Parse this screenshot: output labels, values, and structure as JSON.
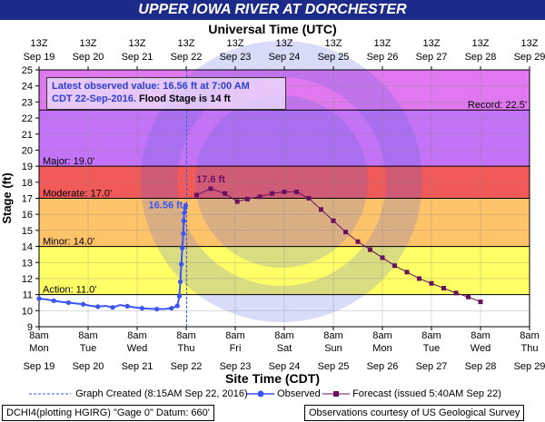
{
  "header": {
    "title": "UPPER IOWA RIVER AT DORCHESTER",
    "top_axis_title": "Universal Time (UTC)",
    "bottom_axis_title": "Site Time (CDT)",
    "y_axis_title": "Stage (ft)"
  },
  "info_box": {
    "line1": "Latest observed value: 16.56 ft at 7:00 AM",
    "line2_date": "CDT 22-Sep-2016.",
    "line2_flood": "Flood Stage is 14 ft"
  },
  "legend": {
    "graph_created": "Graph Created (8:15AM Sep 22, 2016)",
    "observed": "Observed",
    "forecast": "Forecast (issued 5:40AM Sep 22)"
  },
  "footer": {
    "left": "DCHI4(plotting HGIRG) \"Gage 0\" Datum: 660'",
    "right": "Observations courtesy of US Geological Survey"
  },
  "colors": {
    "record": "#e079f0",
    "major": "#c373f5",
    "moderate": "#ff8080",
    "moderate_upper": "#f25a5a",
    "minor": "#ffc46a",
    "action": "#ffff66",
    "observed": "#3b55f5",
    "forecast": "#6a1060",
    "title_bar": "#1c2a8a"
  },
  "chart_data": {
    "type": "line",
    "title": "UPPER IOWA RIVER AT DORCHESTER",
    "xlabel": "Site Time (CDT)",
    "ylabel": "Stage (ft)",
    "top_xlabel": "Universal Time (UTC)",
    "ylim": [
      9,
      25
    ],
    "y_ticks": [
      9,
      10,
      11,
      12,
      13,
      14,
      15,
      16,
      17,
      18,
      19,
      20,
      21,
      22,
      23,
      24,
      25
    ],
    "x_range_days": [
      19,
      29
    ],
    "top_ticks": [
      "13Z Sep 19",
      "13Z Sep 20",
      "13Z Sep 21",
      "13Z Sep 22",
      "13Z Sep 23",
      "13Z Sep 24",
      "13Z Sep 25",
      "13Z Sep 26",
      "13Z Sep 27",
      "13Z Sep 28",
      "13Z Sep 29"
    ],
    "bottom_ticks": [
      {
        "time": "8am",
        "day": "Mon",
        "date": "Sep 19"
      },
      {
        "time": "8am",
        "day": "Tue",
        "date": "Sep 20"
      },
      {
        "time": "8am",
        "day": "Wed",
        "date": "Sep 21"
      },
      {
        "time": "8am",
        "day": "Thu",
        "date": "Sep 22"
      },
      {
        "time": "8am",
        "day": "Fri",
        "date": "Sep 23"
      },
      {
        "time": "8am",
        "day": "Sat",
        "date": "Sep 24"
      },
      {
        "time": "8am",
        "day": "Sun",
        "date": "Sep 25"
      },
      {
        "time": "8am",
        "day": "Mon",
        "date": "Sep 26"
      },
      {
        "time": "8am",
        "day": "Tue",
        "date": "Sep 27"
      },
      {
        "time": "8am",
        "day": "Wed",
        "date": "Sep 28"
      },
      {
        "time": "8am",
        "day": "Thu",
        "date": "Sep 29"
      }
    ],
    "flood_categories": [
      {
        "label": "Record: 22.5'",
        "value": 22.5
      },
      {
        "label": "Major: 19.0'",
        "value": 19.0
      },
      {
        "label": "Moderate: 17.0'",
        "value": 17.0
      },
      {
        "label": "Minor: 14.0'",
        "value": 14.0
      },
      {
        "label": "Action: 11.0'",
        "value": 11.0
      }
    ],
    "graph_created_x": 22.01,
    "series": [
      {
        "name": "Observed",
        "x": [
          19.0,
          19.15,
          19.3,
          19.45,
          19.6,
          19.75,
          19.9,
          20.05,
          20.2,
          20.35,
          20.5,
          20.65,
          20.8,
          20.95,
          21.1,
          21.25,
          21.4,
          21.55,
          21.7,
          21.82,
          21.86,
          21.88,
          21.9,
          21.92,
          21.94,
          21.95,
          21.96,
          21.98,
          21.99
        ],
        "y": [
          10.75,
          10.7,
          10.62,
          10.55,
          10.5,
          10.45,
          10.4,
          10.3,
          10.25,
          10.3,
          10.2,
          10.35,
          10.28,
          10.2,
          10.15,
          10.12,
          10.1,
          10.1,
          10.15,
          10.3,
          10.9,
          11.8,
          12.9,
          13.9,
          14.8,
          15.6,
          16.1,
          16.4,
          16.56
        ]
      },
      {
        "name": "Forecast (issued 5:40AM Sep 22)",
        "x": [
          22.21,
          22.5,
          22.79,
          23.04,
          23.25,
          23.5,
          23.75,
          24.0,
          24.25,
          24.5,
          24.75,
          25.0,
          25.25,
          25.5,
          25.75,
          26.0,
          26.25,
          26.5,
          26.75,
          27.0,
          27.25,
          27.5,
          27.75,
          28.0
        ],
        "y": [
          17.2,
          17.6,
          17.3,
          16.8,
          16.95,
          17.1,
          17.3,
          17.4,
          17.4,
          17.0,
          16.3,
          15.6,
          14.9,
          14.3,
          13.8,
          13.3,
          12.8,
          12.4,
          12.0,
          11.7,
          11.4,
          11.1,
          10.85,
          10.55
        ]
      }
    ],
    "annotations": [
      {
        "text": "16.56 ft",
        "x": 21.99,
        "y": 16.56
      },
      {
        "text": "17.6 ft",
        "x": 22.5,
        "y": 17.6
      }
    ],
    "grid": true
  }
}
